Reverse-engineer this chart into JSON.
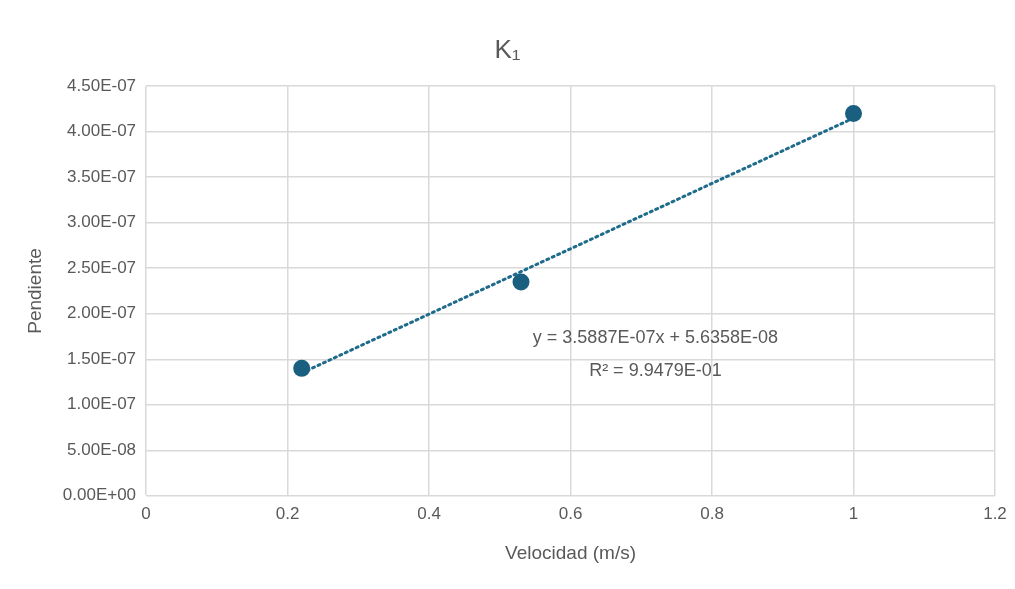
{
  "chart_data": {
    "type": "scatter",
    "title": "K₁",
    "xlabel": "Velocidad (m/s)",
    "ylabel": "Pendiente",
    "x": [
      0.22,
      0.53,
      1.0
    ],
    "series": [
      {
        "color": "#1b5f80",
        "values": [
          1.4e-07,
          2.35e-07,
          4.2e-07
        ]
      },
      {
        "type": "line",
        "x": [
          0.22,
          1.0
        ],
        "values": [
          1.35e-07,
          4.15e-07
        ],
        "color": "#1f6b8c",
        "marker": "none",
        "line_style": "dotted"
      }
    ],
    "xlim": [
      0,
      1.2
    ],
    "xticks": [
      0,
      0.2,
      0.4,
      0.6,
      0.8,
      1,
      1.2
    ],
    "ylim": [
      0,
      4.5e-07
    ],
    "yticks": [
      {
        "value": 0,
        "label": "0.00E+00"
      },
      {
        "value": 5e-08,
        "label": "5.00E-08"
      },
      {
        "value": 1e-07,
        "label": "1.00E-07"
      },
      {
        "value": 1.5e-07,
        "label": "1.50E-07"
      },
      {
        "value": 2e-07,
        "label": "2.00E-07"
      },
      {
        "value": 2.5e-07,
        "label": "2.50E-07"
      },
      {
        "value": 3e-07,
        "label": "3.00E-07"
      },
      {
        "value": 3.5e-07,
        "label": "3.50E-07"
      },
      {
        "value": 4e-07,
        "label": "4.00E-07"
      },
      {
        "value": 4.5e-07,
        "label": "4.50E-07"
      }
    ],
    "grid": true,
    "marker": "circle",
    "annotations": [
      "y = 3.5887E-07x + 5.6358E-08",
      "R² = 9.9479E-01"
    ]
  }
}
